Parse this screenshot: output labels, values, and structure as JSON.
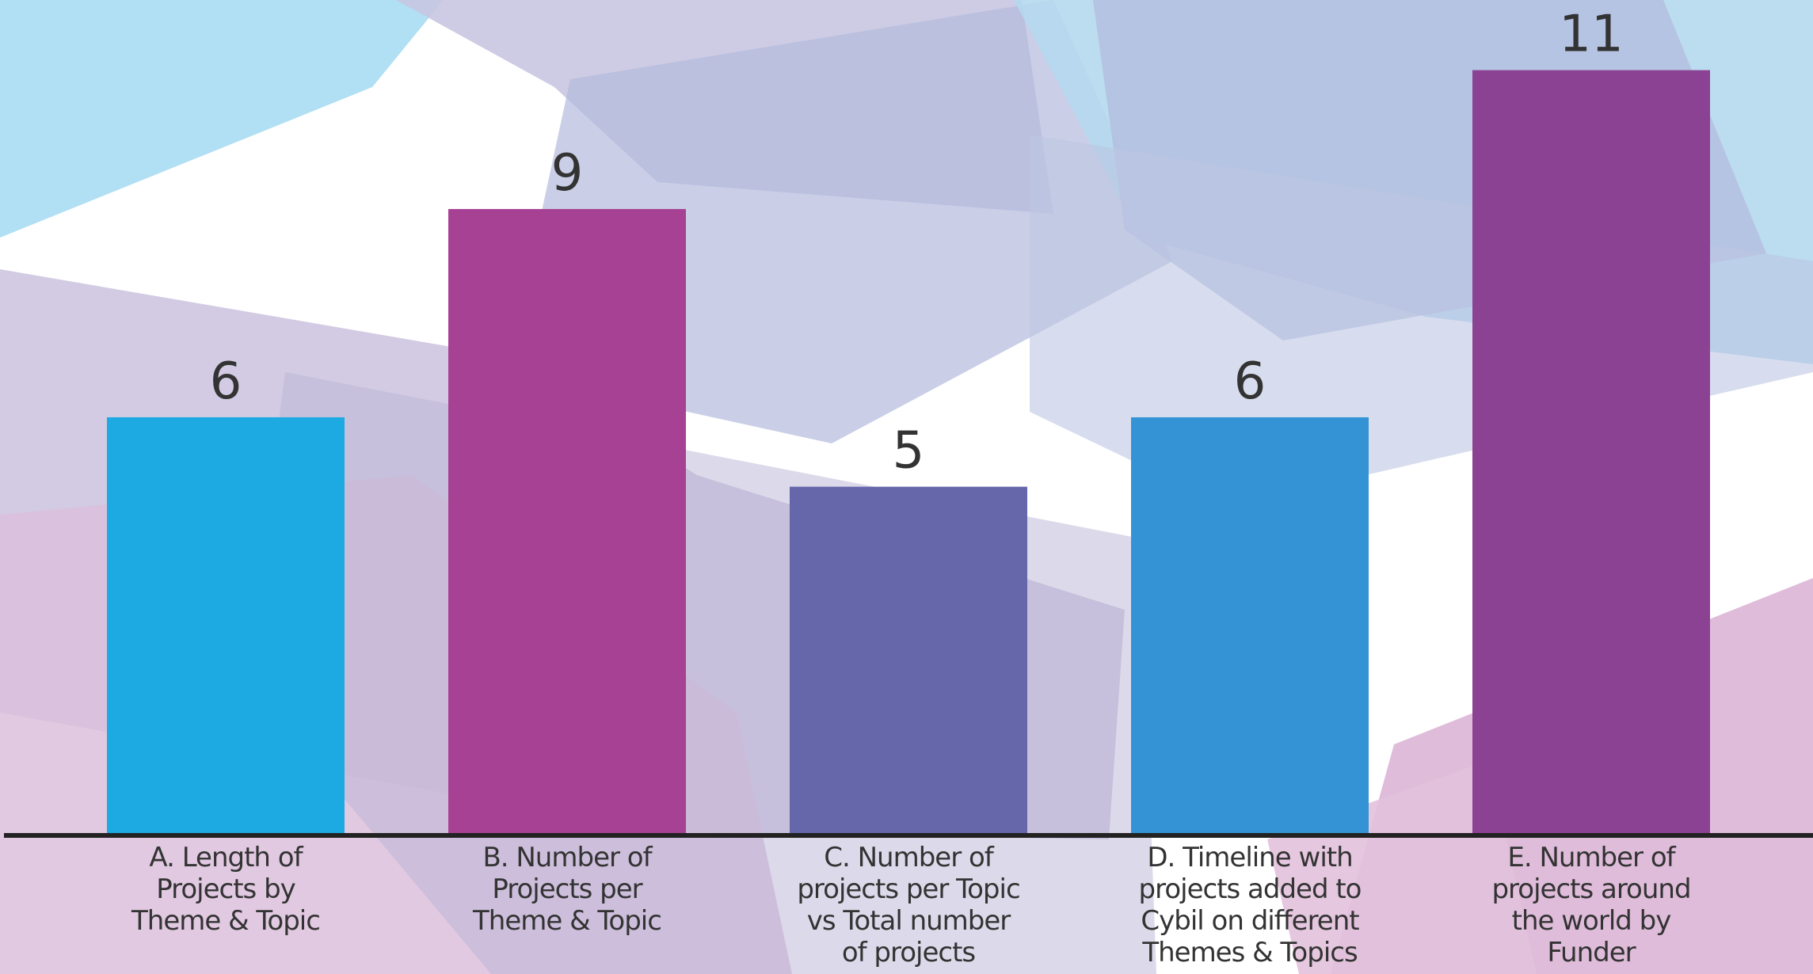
{
  "chart_data": {
    "type": "bar",
    "title": "",
    "xlabel": "",
    "ylabel": "",
    "ylim": [
      0,
      11.6
    ],
    "grid": false,
    "legend": "none",
    "categories": [
      [
        "A. Length of",
        "Projects by",
        "Theme & Topic"
      ],
      [
        "B. Number of",
        "Projects per",
        "Theme & Topic"
      ],
      [
        "C. Number of",
        "projects per Topic",
        "vs Total number",
        "of projects"
      ],
      [
        "D. Timeline with",
        "projects added to",
        "Cybil on different",
        "Themes & Topics"
      ],
      [
        "E. Number of",
        "projects around",
        "the world by",
        "Funder"
      ]
    ],
    "values": [
      6,
      9,
      5,
      6,
      11
    ],
    "value_labels": [
      "6",
      "9",
      "5",
      "6",
      "11"
    ],
    "colors": [
      "#1DA9E1",
      "#A74194",
      "#6667AB",
      "#3493D4",
      "#8C4292"
    ],
    "axis_color": "#222222"
  }
}
